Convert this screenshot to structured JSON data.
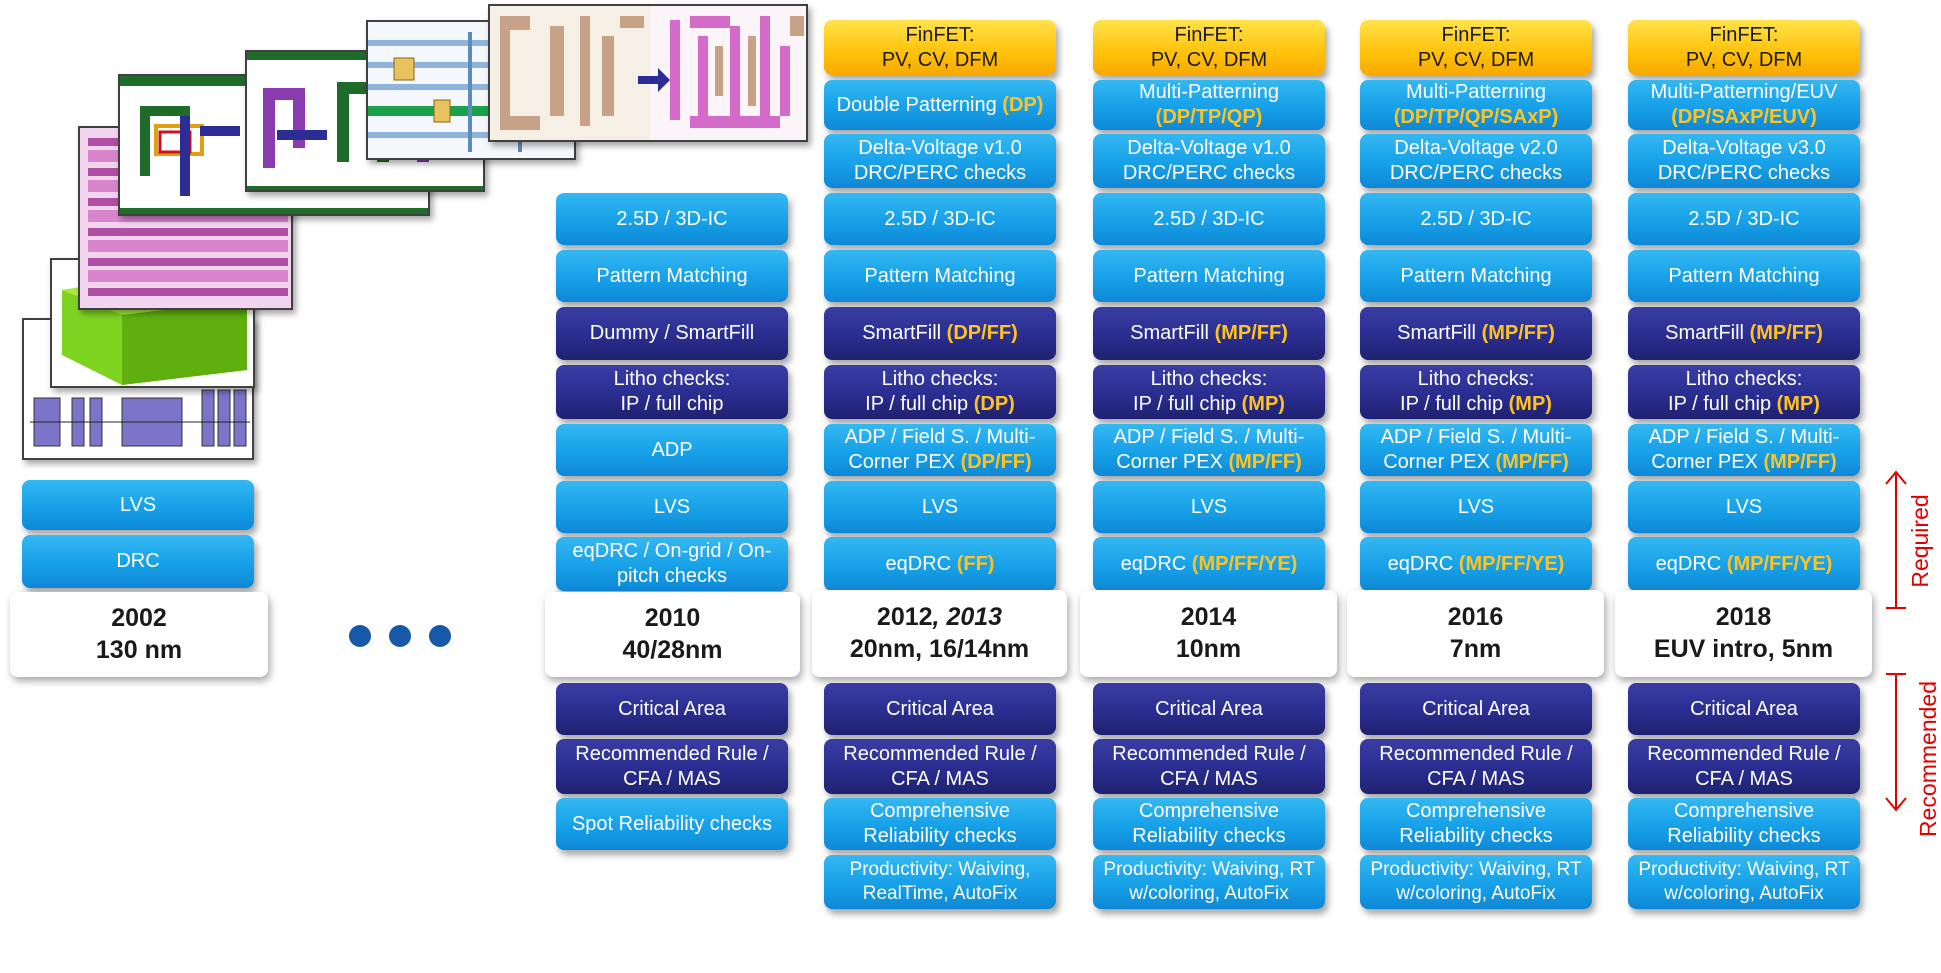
{
  "colors": {
    "light_blue": "#1ba4ec",
    "dark_blue": "#2a2d8f",
    "gold": "#ffc20a",
    "highlight": "#ffc320",
    "red": "#e00000",
    "dots": "#1659a8"
  },
  "year_2002": {
    "line1": "2002",
    "line2": "130 nm"
  },
  "col2002": {
    "lvs": "LVS",
    "drc": "DRC"
  },
  "year_2010": {
    "line1": "2010",
    "line2": "40/28nm"
  },
  "col2010": {
    "ic": "2.5D / 3D-IC",
    "pattern": "Pattern Matching",
    "dummy": "Dummy / SmartFill",
    "litho1": "Litho checks:",
    "litho2": "IP / full chip",
    "adp": "ADP",
    "lvs": "LVS",
    "eqdrc1": "eqDRC / On-grid / On-",
    "eqdrc2": "pitch checks",
    "critical": "Critical Area",
    "rec1": "Recommended Rule /",
    "rec2": "CFA / MAS",
    "spot": "Spot Reliability checks"
  },
  "year_2012": {
    "line1a": "2012",
    "line1b": ", 2013",
    "line2": "20nm, 16/14nm"
  },
  "col2012": {
    "finfet1": "FinFET:",
    "finfet2": "PV, CV, DFM",
    "patterning": "Double Patterning ",
    "patterning_hl": "(DP)",
    "dv1": "Delta-Voltage v1.0",
    "dv2": "DRC/PERC checks",
    "ic": "2.5D / 3D-IC",
    "pattern": "Pattern Matching",
    "smartfill": "SmartFill ",
    "smartfill_hl": "(DP/FF)",
    "litho1": "Litho checks:",
    "litho2": "IP / full chip ",
    "litho2_hl": "(DP)",
    "adp1": "ADP / Field S. / Multi-",
    "adp2": "Corner PEX ",
    "adp2_hl": "(DP/FF)",
    "lvs": "LVS",
    "eqdrc": "eqDRC ",
    "eqdrc_hl": "(FF)",
    "critical": "Critical Area",
    "rec1": "Recommended Rule /",
    "rec2": "CFA / MAS",
    "comp1": "Comprehensive",
    "comp2": "Reliability checks",
    "prod1": "Productivity: Waiving,",
    "prod2": "RealTime, AutoFix"
  },
  "year_2014": {
    "line1": "2014",
    "line2": "10nm"
  },
  "col2014": {
    "finfet1": "FinFET:",
    "finfet2": "PV, CV, DFM",
    "patterning1": "Multi-Patterning",
    "patterning2_hl": "(DP/TP/QP)",
    "dv1": "Delta-Voltage v1.0",
    "dv2": "DRC/PERC checks",
    "ic": "2.5D / 3D-IC",
    "pattern": "Pattern Matching",
    "smartfill": "SmartFill ",
    "smartfill_hl": "(MP/FF)",
    "litho1": "Litho checks:",
    "litho2": "IP / full chip ",
    "litho2_hl": "(MP)",
    "adp1": "ADP / Field S. / Multi-",
    "adp2": "Corner PEX ",
    "adp2_hl": "(MP/FF)",
    "lvs": "LVS",
    "eqdrc": "eqDRC ",
    "eqdrc_hl": "(MP/FF/YE)",
    "critical": "Critical Area",
    "rec1": "Recommended Rule /",
    "rec2": "CFA / MAS",
    "comp1": "Comprehensive",
    "comp2": "Reliability checks",
    "prod1": "Productivity: Waiving, RT",
    "prod2": "w/coloring, AutoFix"
  },
  "year_2016": {
    "line1": "2016",
    "line2": "7nm"
  },
  "col2016": {
    "finfet1": "FinFET:",
    "finfet2": "PV, CV, DFM",
    "patterning1": "Multi-Patterning",
    "patterning2_hl": "(DP/TP/QP/SAxP)",
    "dv1": "Delta-Voltage v2.0",
    "dv2": "DRC/PERC checks",
    "ic": "2.5D / 3D-IC",
    "pattern": "Pattern Matching",
    "smartfill": "SmartFill ",
    "smartfill_hl": "(MP/FF)",
    "litho1": "Litho checks:",
    "litho2": "IP / full chip ",
    "litho2_hl": "(MP)",
    "adp1": "ADP / Field S. / Multi-",
    "adp2": "Corner PEX ",
    "adp2_hl": "(MP/FF)",
    "lvs": "LVS",
    "eqdrc": "eqDRC ",
    "eqdrc_hl": "(MP/FF/YE)",
    "critical": "Critical Area",
    "rec1": "Recommended Rule /",
    "rec2": "CFA / MAS",
    "comp1": "Comprehensive",
    "comp2": "Reliability checks",
    "prod1": "Productivity: Waiving, RT",
    "prod2": "w/coloring, AutoFix"
  },
  "year_2018": {
    "line1": "2018",
    "line2": "EUV intro, 5nm"
  },
  "col2018": {
    "finfet1": "FinFET:",
    "finfet2": "PV, CV, DFM",
    "patterning1": "Multi-Patterning/EUV",
    "patterning2_hl": "(DP/SAxP/EUV)",
    "dv1": "Delta-Voltage v3.0",
    "dv2": "DRC/PERC checks",
    "ic": "2.5D / 3D-IC",
    "pattern": "Pattern Matching",
    "smartfill": "SmartFill ",
    "smartfill_hl": "(MP/FF)",
    "litho1": "Litho checks:",
    "litho2": "IP / full chip ",
    "litho2_hl": "(MP)",
    "adp1": "ADP / Field S. / Multi-",
    "adp2": "Corner PEX ",
    "adp2_hl": "(MP/FF)",
    "lvs": "LVS",
    "eqdrc": "eqDRC ",
    "eqdrc_hl": "(MP/FF/YE)",
    "critical": "Critical Area",
    "rec1": "Recommended Rule /",
    "rec2": "CFA / MAS",
    "comp1": "Comprehensive",
    "comp2": "Reliability checks",
    "prod1": "Productivity: Waiving, RT",
    "prod2": "w/coloring, AutoFix"
  },
  "labels": {
    "required": "Required",
    "recommended": "Recommended"
  }
}
